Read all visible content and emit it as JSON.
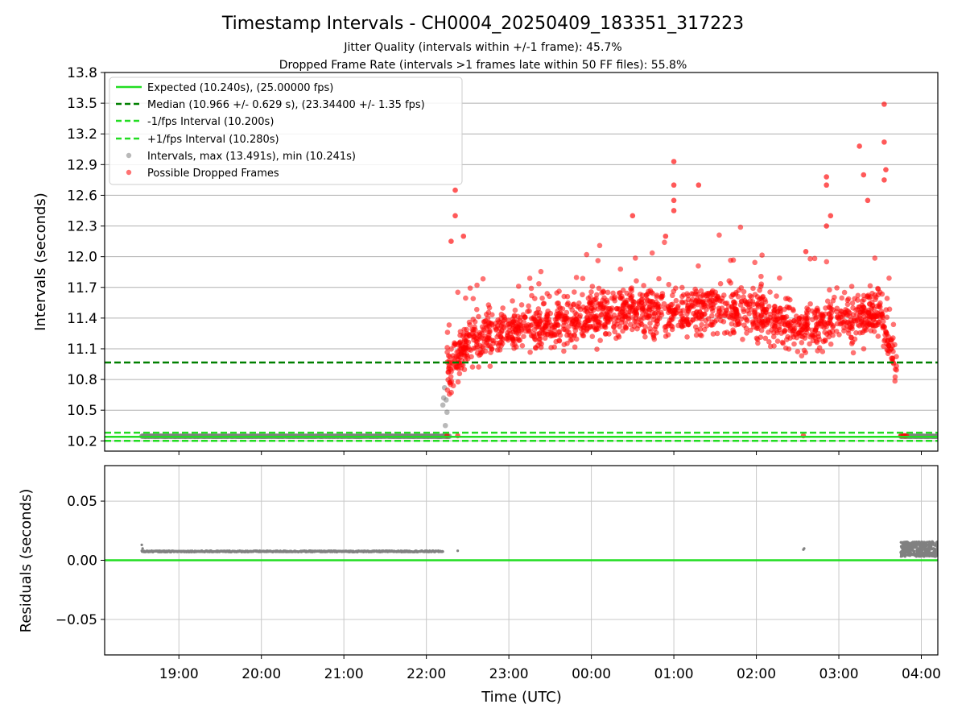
{
  "chart_data": [
    {
      "type": "scatter",
      "title": "Timestamp Intervals - CH0004_20250409_183351_317223",
      "subtitle_lines": [
        "Jitter Quality (intervals within +/-1 frame): 45.7%",
        "Dropped Frame Rate (intervals >1 frames late within 50 FF files): 55.8%"
      ],
      "xlabel": "",
      "ylabel": "Intervals (seconds)",
      "x_unit": "hours (UTC, continuing past midnight)",
      "xlim": [
        18.1,
        28.2
      ],
      "ylim": [
        10.1,
        13.8
      ],
      "yticks": [
        "10.2",
        "10.5",
        "10.8",
        "11.1",
        "11.4",
        "11.7",
        "12.0",
        "12.3",
        "12.6",
        "12.9",
        "13.2",
        "13.5",
        "13.8"
      ],
      "grid": true,
      "legend": {
        "placement": "upper-left",
        "entries": [
          "Expected (10.240s), (25.00000 fps)",
          "Median (10.966 +/- 0.629 s), (23.34400 +/- 1.35 fps)",
          "-1/fps Interval (10.200s)",
          "+1/fps Interval (10.280s)",
          "Intervals, max (13.491s), min (10.241s)",
          "Possible Dropped Frames"
        ]
      },
      "reference_lines": [
        {
          "y": 10.24,
          "style": "solid",
          "color": "#22dd22"
        },
        {
          "y": 10.966,
          "style": "dashed",
          "color": "#008000"
        },
        {
          "y": 10.2,
          "style": "dashed",
          "color": "#22dd22"
        },
        {
          "y": 10.28,
          "style": "dashed",
          "color": "#22dd22"
        }
      ],
      "series": [
        {
          "name": "Intervals, max (13.491s), min (10.241s)",
          "color": "#808080",
          "segments": [
            {
              "x_start": 18.55,
              "x_end": 22.28,
              "y": 10.245
            },
            {
              "x_start": 27.75,
              "x_end": 28.2,
              "y": 10.245
            }
          ],
          "points": [
            [
              22.2,
              10.55
            ],
            [
              22.21,
              10.62
            ],
            [
              22.22,
              10.72
            ],
            [
              22.23,
              10.35
            ],
            [
              22.25,
              10.48
            ],
            [
              22.24,
              10.6
            ]
          ]
        },
        {
          "name": "Possible Dropped Frames",
          "color": "#ff0000",
          "x_start": 22.25,
          "x_end": 27.8,
          "trend": [
            [
              22.3,
              10.9
            ],
            [
              22.5,
              11.2
            ],
            [
              23.0,
              11.3
            ],
            [
              23.5,
              11.35
            ],
            [
              24.0,
              11.4
            ],
            [
              24.5,
              11.5
            ],
            [
              25.0,
              11.45
            ],
            [
              25.5,
              11.5
            ],
            [
              26.0,
              11.45
            ],
            [
              26.5,
              11.3
            ],
            [
              27.0,
              11.4
            ],
            [
              27.5,
              11.45
            ],
            [
              27.65,
              11.1
            ],
            [
              27.75,
              10.7
            ]
          ],
          "notable_points": [
            [
              22.35,
              12.65
            ],
            [
              22.35,
              12.4
            ],
            [
              22.3,
              12.15
            ],
            [
              22.45,
              12.2
            ],
            [
              25.0,
              12.93
            ],
            [
              25.0,
              12.7
            ],
            [
              25.3,
              12.7
            ],
            [
              25.0,
              12.55
            ],
            [
              25.0,
              12.45
            ],
            [
              27.55,
              13.49
            ],
            [
              27.55,
              13.12
            ],
            [
              27.57,
              12.85
            ],
            [
              27.55,
              12.75
            ],
            [
              27.25,
              13.08
            ],
            [
              27.3,
              12.8
            ],
            [
              27.35,
              12.55
            ],
            [
              26.85,
              12.78
            ],
            [
              26.85,
              12.7
            ],
            [
              26.9,
              12.4
            ],
            [
              26.85,
              12.3
            ],
            [
              26.6,
              12.05
            ],
            [
              26.57,
              10.25
            ],
            [
              22.25,
              10.25
            ],
            [
              22.38,
              10.25
            ],
            [
              24.5,
              12.4
            ],
            [
              24.9,
              12.2
            ],
            [
              27.75,
              10.25
            ],
            [
              27.78,
              10.25
            ],
            [
              27.8,
              10.25
            ],
            [
              27.82,
              10.25
            ]
          ]
        }
      ]
    },
    {
      "type": "scatter",
      "title": "",
      "xlabel": "Time (UTC)",
      "ylabel": "Residuals (seconds)",
      "xlim": [
        18.1,
        28.2
      ],
      "ylim": [
        -0.08,
        0.08
      ],
      "xticks": [
        "19:00",
        "20:00",
        "21:00",
        "22:00",
        "23:00",
        "00:00",
        "01:00",
        "02:00",
        "03:00",
        "04:00"
      ],
      "yticks": [
        "−0.05",
        "0.00",
        "0.05"
      ],
      "grid": true,
      "reference_lines": [
        {
          "y": 0.0,
          "style": "solid",
          "color": "#22dd22"
        }
      ],
      "series": [
        {
          "name": "",
          "color": "#808080",
          "segments": [
            {
              "x_start": 18.55,
              "x_end": 22.2,
              "y": 0.0075
            }
          ],
          "points": [
            [
              18.55,
              0.013
            ],
            [
              18.56,
              0.01
            ],
            [
              22.38,
              0.008
            ],
            [
              26.57,
              0.009
            ],
            [
              26.58,
              0.01
            ]
          ],
          "cluster": {
            "x_start": 27.75,
            "x_end": 28.2,
            "y_min": 0.003,
            "y_max": 0.016
          }
        }
      ]
    }
  ]
}
